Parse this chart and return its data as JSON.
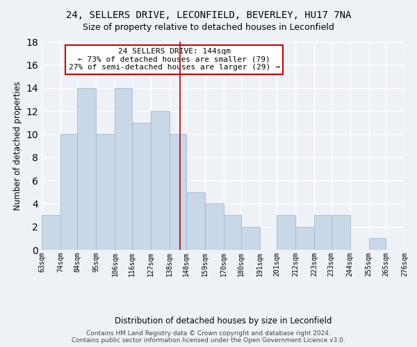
{
  "title": "24, SELLERS DRIVE, LECONFIELD, BEVERLEY, HU17 7NA",
  "subtitle": "Size of property relative to detached houses in Leconfield",
  "xlabel": "Distribution of detached houses by size in Leconfield",
  "ylabel": "Number of detached properties",
  "bins": [
    63,
    74,
    84,
    95,
    106,
    116,
    127,
    138,
    148,
    159,
    170,
    180,
    191,
    201,
    212,
    223,
    233,
    244,
    255,
    265,
    276
  ],
  "bin_labels": [
    "63sqm",
    "74sqm",
    "84sqm",
    "95sqm",
    "106sqm",
    "116sqm",
    "127sqm",
    "138sqm",
    "148sqm",
    "159sqm",
    "170sqm",
    "180sqm",
    "191sqm",
    "201sqm",
    "212sqm",
    "223sqm",
    "233sqm",
    "244sqm",
    "255sqm",
    "265sqm",
    "276sqm"
  ],
  "counts": [
    3,
    10,
    14,
    10,
    14,
    11,
    12,
    10,
    5,
    4,
    3,
    2,
    0,
    3,
    2,
    3,
    3,
    0,
    1,
    0
  ],
  "bar_color": "#c8d8e8",
  "bar_edge_color": "#a0b8d0",
  "vline_x": 144,
  "vline_color": "#aa0000",
  "ylim": [
    0,
    18
  ],
  "yticks": [
    0,
    2,
    4,
    6,
    8,
    10,
    12,
    14,
    16,
    18
  ],
  "annotation_line1": "24 SELLERS DRIVE: 144sqm",
  "annotation_line2": "← 73% of detached houses are smaller (79)",
  "annotation_line3": "27% of semi-detached houses are larger (29) →",
  "annotation_box_color": "#ffffff",
  "annotation_box_edge": "#cc0000",
  "footer_line1": "Contains HM Land Registry data © Crown copyright and database right 2024.",
  "footer_line2": "Contains public sector information licensed under the Open Government Licence v3.0.",
  "bg_color": "#eef2f7",
  "grid_color": "#ffffff",
  "title_fontsize": 10,
  "subtitle_fontsize": 9,
  "axis_label_fontsize": 8.5,
  "tick_fontsize": 7,
  "footer_fontsize": 6.5,
  "annotation_fontsize": 8
}
